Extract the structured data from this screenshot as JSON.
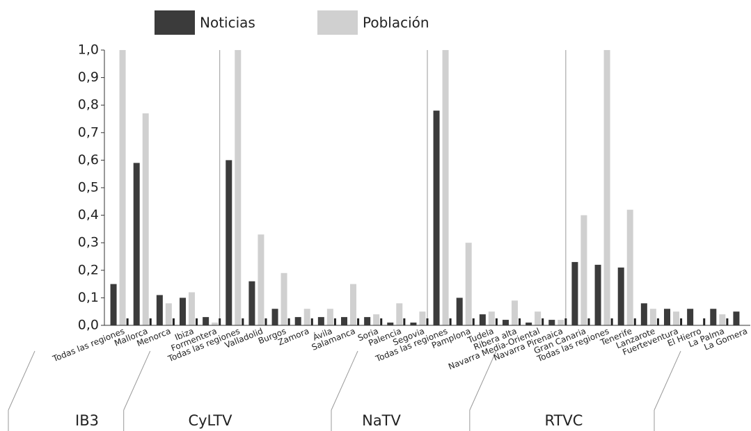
{
  "chart_data": {
    "type": "bar",
    "groups": [
      {
        "name": "IB3",
        "size": 5
      },
      {
        "name": "CyLTV",
        "size": 9
      },
      {
        "name": "NaTV",
        "size": 6
      },
      {
        "name": "RTVC",
        "size": 8
      }
    ],
    "categories": [
      "Todas las regiones",
      "Mallorca",
      "Menorca",
      "Ibiza",
      "Formentera",
      "Todas las regiones",
      "Valladolid",
      "Burgos",
      "Zamora",
      "Ávila",
      "Salamanca",
      "Soria",
      "Palencia",
      "Segovia",
      "Todas las regiones",
      "Pamplona",
      "Tudela",
      "Ribera alta",
      "Navarra Media-Oriental",
      "Navarra Pirenaica",
      "Gran Canaria",
      "Todas las regiones",
      "Tenerife",
      "Lanzarote",
      "Fuerteventura",
      "El Hierro",
      "La Palma",
      "La Gomera"
    ],
    "series": [
      {
        "name": "Noticias",
        "color": "#3b3b3b",
        "values": [
          0.15,
          0.59,
          0.11,
          0.1,
          0.03,
          0.6,
          0.16,
          0.06,
          0.03,
          0.03,
          0.03,
          0.03,
          0.01,
          0.01,
          0.78,
          0.1,
          0.04,
          0.02,
          0.01,
          0.02,
          0.23,
          0.22,
          0.21,
          0.08,
          0.06,
          0.06,
          0.06,
          0.05
        ]
      },
      {
        "name": "Población",
        "color": "#d0d0d0",
        "values": [
          1.0,
          0.77,
          0.08,
          0.12,
          0.01,
          1.0,
          0.33,
          0.19,
          0.06,
          0.06,
          0.15,
          0.04,
          0.08,
          0.05,
          1.0,
          0.3,
          0.05,
          0.09,
          0.05,
          0.02,
          0.4,
          1.0,
          0.42,
          0.06,
          0.05,
          0,
          0.04,
          0
        ]
      }
    ],
    "ylim": [
      0,
      1
    ],
    "yticks": [
      {
        "value": 0,
        "label": "0,0"
      },
      {
        "value": 0.1,
        "label": "0,1"
      },
      {
        "value": 0.2,
        "label": "0,2"
      },
      {
        "value": 0.3,
        "label": "0,3"
      },
      {
        "value": 0.4,
        "label": "0,4"
      },
      {
        "value": 0.5,
        "label": "0,5"
      },
      {
        "value": 0.6,
        "label": "0,6"
      },
      {
        "value": 0.7,
        "label": "0,7"
      },
      {
        "value": 0.8,
        "label": "0,8"
      },
      {
        "value": 0.9,
        "label": "0,9"
      },
      {
        "value": 1,
        "label": "1,0"
      }
    ],
    "legend": "top"
  }
}
